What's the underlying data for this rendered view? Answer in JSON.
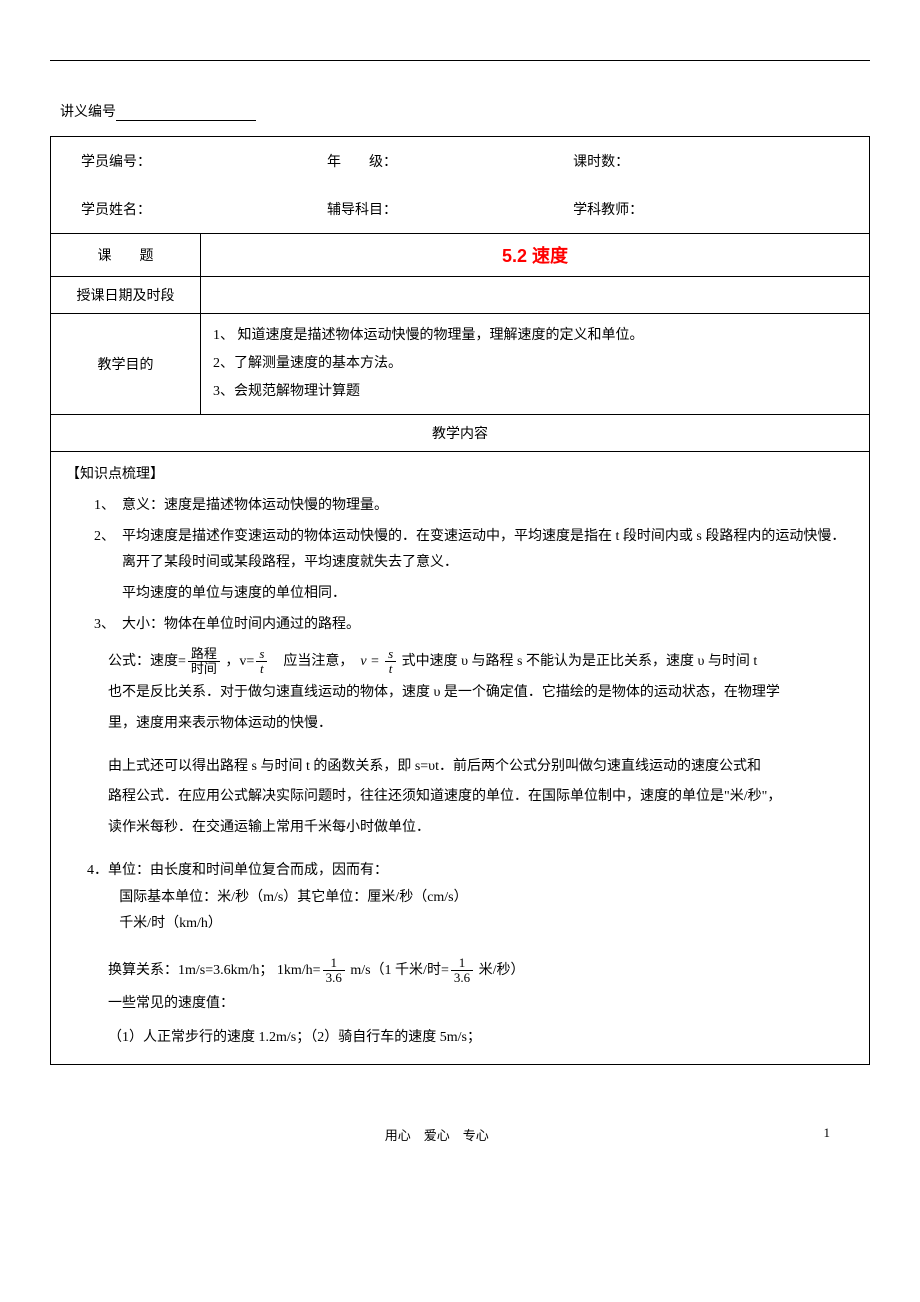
{
  "header": {
    "lecture_number_label": "讲义编号"
  },
  "info": {
    "student_id": "学员编号：",
    "grade": "年　　级：",
    "hours": "课时数：",
    "student_name": "学员姓名：",
    "subject": "辅导科目：",
    "teacher": "学科教师："
  },
  "table": {
    "topic_label": "课　　题",
    "topic_value": "5.2 速度",
    "date_label": "授课日期及时段",
    "objective_label": "教学目的",
    "obj1": "1、 知道速度是描述物体运动快慢的物理量，理解速度的定义和单位。",
    "obj2": "2、了解测量速度的基本方法。",
    "obj3": "3、会规范解物理计算题",
    "content_header": "教学内容"
  },
  "content": {
    "knowledge_head": "【知识点梳理】",
    "item1": "1、　意义：速度是描述物体运动快慢的物理量。",
    "item2": "2、　平均速度是描述作变速运动的物体运动快慢的．在变速运动中，平均速度是指在 t 段时间内或 s 段路程内的运动快慢．离开了某段时间或某段路程，平均速度就失去了意义．",
    "item2_sub": "平均速度的单位与速度的单位相同．",
    "item3": "3、　大小：物体在单位时间内通过的路程。",
    "formula_prefix": "公式：速度=",
    "frac1_num": "路程",
    "frac1_den": "时间",
    "formula_mid1": " ，v=",
    "frac2_num": "s",
    "frac2_den": "t",
    "formula_mid2": "　应当注意，　",
    "formula_v_eq": "v =",
    "frac3_num": "s",
    "frac3_den": "t",
    "formula_tail": " 式中速度 υ 与路程 s 不能认为是正比关系，速度 υ 与时间 t",
    "formula_line2": "也不是反比关系．对于做匀速直线运动的物体，速度 υ 是一个确定值．它描绘的是物体的运动状态，在物理学",
    "formula_line3": "里，速度用来表示物体运动的快慢．",
    "derive1": "由上式还可以得出路程 s 与时间 t 的函数关系，即 s=υt．前后两个公式分别叫做匀速直线运动的速度公式和",
    "derive2": "路程公式．在应用公式解决实际问题时，往往还须知道速度的单位．在国际单位制中，速度的单位是\"米/秒\"，",
    "derive3": "读作米每秒．在交通运输上常用千米每小时做单位．",
    "unit1": "4．单位：由长度和时间单位复合而成，因而有：",
    "unit2": "国际基本单位：米/秒（m/s）其它单位：厘米/秒（cm/s）",
    "unit3": "千米/时（km/h）",
    "conv_prefix": "换算关系：1m/s=3.6km/h； 1km/h=",
    "conv_frac1_num": "1",
    "conv_frac1_den": "3.6",
    "conv_mid": " m/s（1 千米/时=",
    "conv_frac2_num": "1",
    "conv_frac2_den": "3.6",
    "conv_tail": " 米/秒）",
    "common_head": "一些常见的速度值：",
    "common1": "（1）人正常步行的速度 1.2m/s；（2）骑自行车的速度 5m/s；"
  },
  "footer": {
    "motto": "用心　爱心　专心",
    "page": "1"
  }
}
